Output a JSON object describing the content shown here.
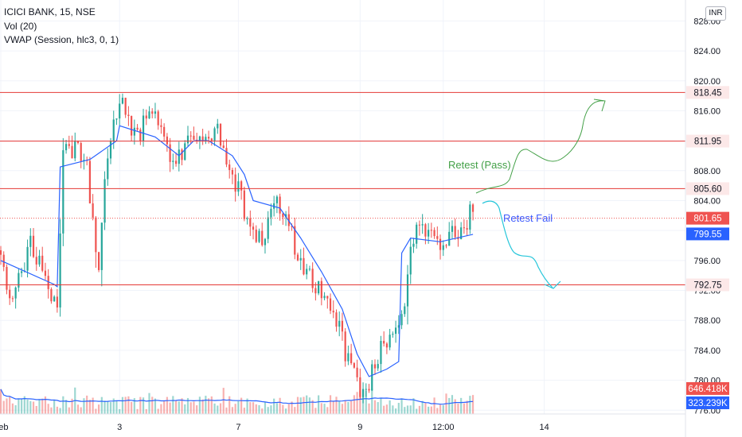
{
  "legend": {
    "symbol": "ICICI BANK, 15, NSE",
    "volume": "Vol (20)",
    "vwap": "VWAP (Session, hlc3, 0, 1)"
  },
  "currency_button": "INR",
  "colors": {
    "up": "#26a69a",
    "down": "#ef5350",
    "level_line": "#e53935",
    "vwap_line": "#2962ff",
    "pass_arrow": "#43a047",
    "fail_arrow": "#26c6da",
    "fail_text": "#3d5afe",
    "axis_text": "#131722",
    "current_price": "#ef5350",
    "vwap_label": "#2962ff"
  },
  "chart_data": {
    "type": "candlestick",
    "symbol": "ICICI BANK",
    "interval": "15",
    "exchange": "NSE",
    "currency": "INR",
    "y_range": [
      775.5,
      830.8
    ],
    "y_ticks": [
      776,
      780,
      784,
      788,
      792,
      796,
      800,
      804,
      808,
      812,
      816,
      820,
      824,
      828
    ],
    "y_tick_labels": [
      "776.00",
      "780.00",
      "784.00",
      "788.00",
      "792.00",
      "796.00",
      "800.00",
      "804.00",
      "808.00",
      "812.00",
      "816.00",
      "820.00",
      "824.00",
      "828.00"
    ],
    "x_tick_labels": [
      "Feb",
      "3",
      "7",
      "9",
      "12:00",
      "14"
    ],
    "x_tick_bars": [
      0,
      40,
      80,
      121,
      149,
      183
    ],
    "horizontal_levels": [
      818.45,
      811.95,
      805.6,
      792.75
    ],
    "level_labels": [
      "818.45",
      "811.95",
      "805.60",
      "792.75"
    ],
    "current_price": 801.65,
    "current_price_label": "801.65",
    "vwap_last": 799.55,
    "vwap_label": "799.55",
    "volume_labels": [
      "646.418K",
      "323.239K"
    ],
    "annotations": [
      {
        "text": "Retest (Pass)",
        "color": "#43a047"
      },
      {
        "text": "Retest Fail",
        "color": "#3d5afe"
      }
    ],
    "waypoints": [
      [
        0,
        797
      ],
      [
        4,
        790
      ],
      [
        10,
        799
      ],
      [
        16,
        793
      ],
      [
        19,
        789
      ],
      [
        21,
        810
      ],
      [
        28,
        811
      ],
      [
        33,
        795
      ],
      [
        36,
        811
      ],
      [
        40,
        818
      ],
      [
        45,
        813
      ],
      [
        52,
        815
      ],
      [
        58,
        808
      ],
      [
        63,
        813
      ],
      [
        68,
        813
      ],
      [
        73,
        814
      ],
      [
        78,
        807
      ],
      [
        82,
        803
      ],
      [
        88,
        798
      ],
      [
        93,
        804
      ],
      [
        100,
        797
      ],
      [
        106,
        793
      ],
      [
        114,
        787
      ],
      [
        118,
        781
      ],
      [
        122,
        778
      ],
      [
        128,
        784
      ],
      [
        131,
        786
      ],
      [
        134,
        786
      ],
      [
        137,
        794
      ],
      [
        140,
        801
      ],
      [
        145,
        799
      ],
      [
        150,
        799
      ],
      [
        154,
        800
      ],
      [
        159,
        802.5
      ]
    ],
    "vwap_points": [
      [
        0,
        796
      ],
      [
        18,
        792.8
      ],
      [
        19,
        792.5
      ],
      [
        20,
        808.5
      ],
      [
        30,
        809.5
      ],
      [
        39,
        812
      ],
      [
        40,
        814
      ],
      [
        52,
        812.5
      ],
      [
        60,
        810
      ],
      [
        65,
        812
      ],
      [
        70,
        812
      ],
      [
        78,
        810
      ],
      [
        82,
        807.5
      ],
      [
        85,
        804
      ],
      [
        94,
        803
      ],
      [
        101,
        799
      ],
      [
        108,
        794.5
      ],
      [
        115,
        789.5
      ],
      [
        120,
        783.5
      ],
      [
        124,
        780.5
      ],
      [
        130,
        781.5
      ],
      [
        134,
        782.5
      ],
      [
        135,
        797
      ],
      [
        138,
        799
      ],
      [
        148,
        798.5
      ],
      [
        159,
        799.5
      ]
    ]
  }
}
